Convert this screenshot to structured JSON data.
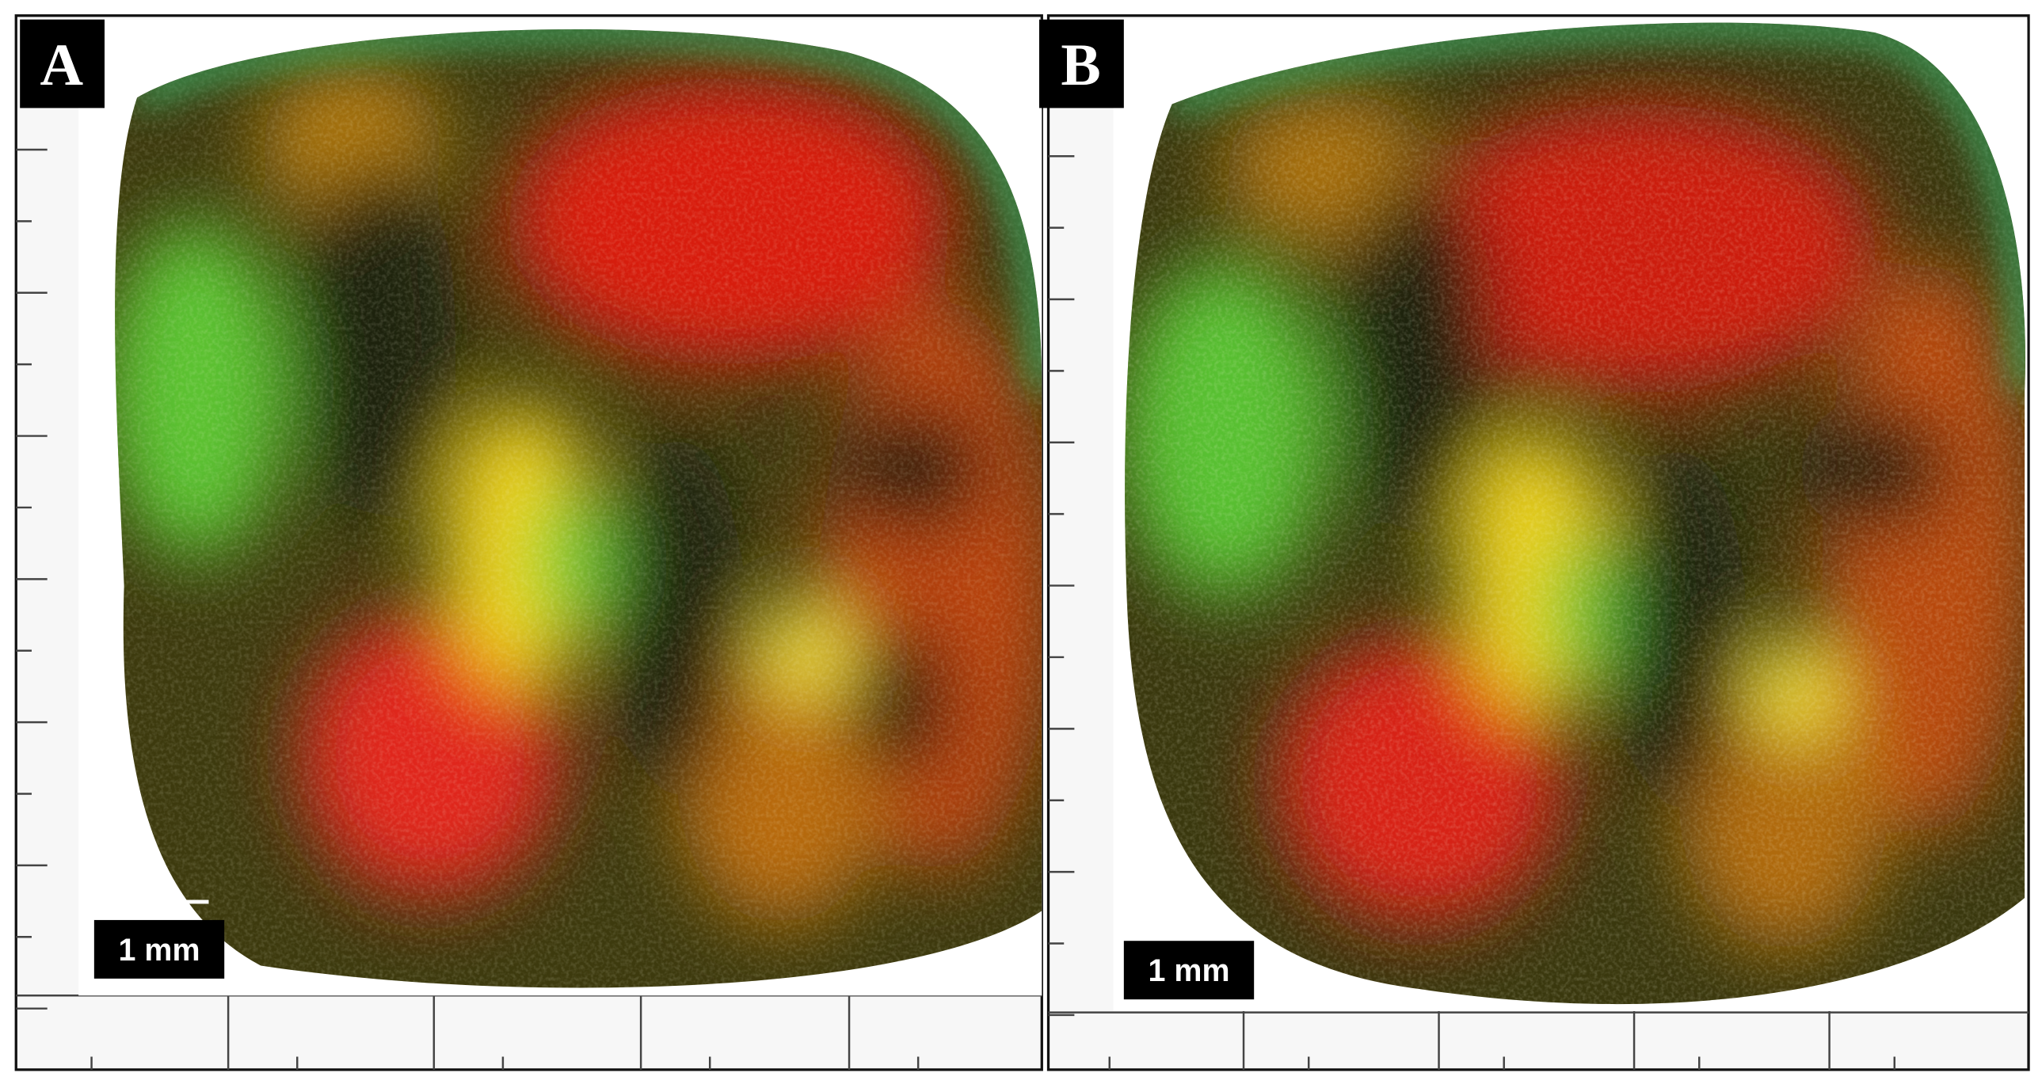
{
  "panels": [
    {
      "label": "A",
      "scale_bar": "1 mm"
    },
    {
      "label": "B",
      "scale_bar": "1 mm"
    }
  ]
}
